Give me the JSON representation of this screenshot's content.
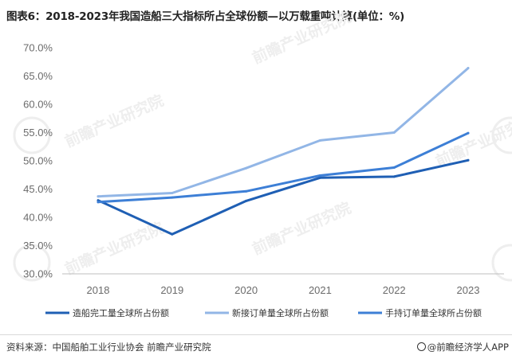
{
  "title": "图表6：2018-2023年我国造船三大指标所占全球份额—以万载重吨计算(单位：%)",
  "source": "资料来源：中国船舶工业行业协会 前瞻产业研究院",
  "brand": "@前瞻经济学人APP",
  "watermark": "前瞻产业研究院",
  "chart_data": {
    "type": "line",
    "title": "图表6：2018-2023年我国造船三大指标所占全球份额—以万载重吨计算(单位：%)",
    "xlabel": "",
    "ylabel": "",
    "categories": [
      "2018",
      "2019",
      "2020",
      "2021",
      "2022",
      "2023"
    ],
    "ylim": [
      30,
      70
    ],
    "yticks": [
      "30.0%",
      "35.0%",
      "40.0%",
      "45.0%",
      "50.0%",
      "55.0%",
      "60.0%",
      "65.0%",
      "70.0%"
    ],
    "grid": false,
    "legend_position": "bottom",
    "series": [
      {
        "name": "造船完工量全球所占份额",
        "color": "#1f5fb4",
        "values": [
          43.0,
          37.0,
          42.9,
          47.0,
          47.2,
          50.1
        ]
      },
      {
        "name": "新接订单量全球所占份额",
        "color": "#92b6e6",
        "values": [
          43.7,
          44.3,
          48.7,
          53.6,
          55.0,
          66.4
        ]
      },
      {
        "name": "手持订单量全球所占份额",
        "color": "#3d7fd6",
        "values": [
          42.7,
          43.5,
          44.6,
          47.4,
          48.8,
          54.9
        ]
      }
    ]
  }
}
